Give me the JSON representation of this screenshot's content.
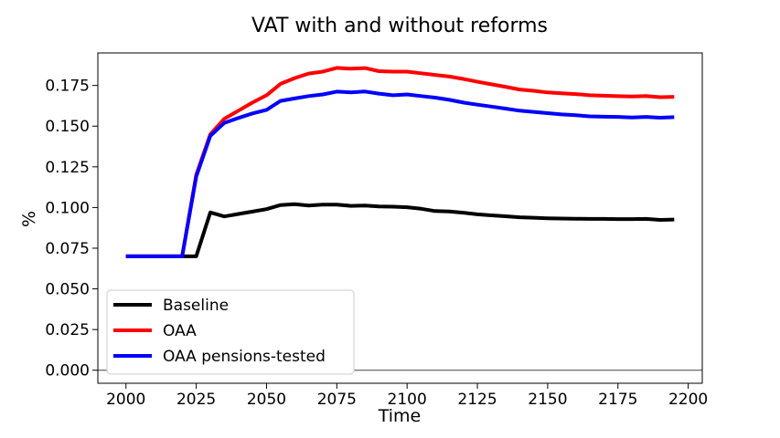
{
  "chart_data": {
    "type": "line",
    "title": "VAT with and without reforms",
    "xlabel": "Time",
    "ylabel": "%",
    "xlim": [
      1990,
      2205
    ],
    "ylim": [
      -0.008,
      0.195
    ],
    "xticks": [
      2000,
      2025,
      2050,
      2075,
      2100,
      2125,
      2150,
      2175,
      2200
    ],
    "yticks": [
      0.0,
      0.025,
      0.05,
      0.075,
      0.1,
      0.125,
      0.15,
      0.175
    ],
    "ytick_labels": [
      "0.000",
      "0.025",
      "0.050",
      "0.075",
      "0.100",
      "0.125",
      "0.150",
      "0.175"
    ],
    "legend_position": "lower-left",
    "grid": false,
    "series": [
      {
        "name": "Baseline",
        "color": "#000000",
        "x": [
          2000,
          2005,
          2010,
          2015,
          2020,
          2025,
          2030,
          2035,
          2040,
          2045,
          2050,
          2055,
          2060,
          2065,
          2070,
          2075,
          2080,
          2085,
          2090,
          2095,
          2100,
          2105,
          2110,
          2115,
          2120,
          2125,
          2130,
          2135,
          2140,
          2145,
          2150,
          2155,
          2160,
          2165,
          2170,
          2175,
          2180,
          2185,
          2190,
          2195
        ],
        "values": [
          0.07,
          0.07,
          0.07,
          0.07,
          0.07,
          0.07,
          0.097,
          0.0945,
          0.096,
          0.0975,
          0.099,
          0.1015,
          0.102,
          0.1012,
          0.1018,
          0.1018,
          0.101,
          0.1012,
          0.1007,
          0.1005,
          0.1002,
          0.0992,
          0.0978,
          0.0976,
          0.0968,
          0.0958,
          0.0952,
          0.0946,
          0.094,
          0.0937,
          0.0934,
          0.0932,
          0.0931,
          0.093,
          0.093,
          0.0929,
          0.0929,
          0.093,
          0.0924,
          0.0926
        ]
      },
      {
        "name": "OAA",
        "color": "#ff0000",
        "x": [
          2000,
          2005,
          2010,
          2015,
          2020,
          2025,
          2030,
          2035,
          2040,
          2045,
          2050,
          2055,
          2060,
          2065,
          2070,
          2075,
          2080,
          2085,
          2090,
          2095,
          2100,
          2105,
          2110,
          2115,
          2120,
          2125,
          2130,
          2135,
          2140,
          2145,
          2150,
          2155,
          2160,
          2165,
          2170,
          2175,
          2180,
          2185,
          2190,
          2195
        ],
        "values": [
          0.07,
          0.07,
          0.07,
          0.07,
          0.07,
          0.12,
          0.145,
          0.1545,
          0.1595,
          0.1645,
          0.169,
          0.176,
          0.1795,
          0.1823,
          0.1835,
          0.1858,
          0.1853,
          0.1857,
          0.1838,
          0.1835,
          0.1835,
          0.1825,
          0.1815,
          0.1805,
          0.179,
          0.1773,
          0.1757,
          0.1742,
          0.1725,
          0.1717,
          0.1707,
          0.1702,
          0.1697,
          0.169,
          0.1687,
          0.1684,
          0.1682,
          0.1685,
          0.1678,
          0.168
        ]
      },
      {
        "name": "OAA pensions-tested",
        "color": "#0000ff",
        "x": [
          2000,
          2005,
          2010,
          2015,
          2020,
          2025,
          2030,
          2035,
          2040,
          2045,
          2050,
          2055,
          2060,
          2065,
          2070,
          2075,
          2080,
          2085,
          2090,
          2095,
          2100,
          2105,
          2110,
          2115,
          2120,
          2125,
          2130,
          2135,
          2140,
          2145,
          2150,
          2155,
          2160,
          2165,
          2170,
          2175,
          2180,
          2185,
          2190,
          2195
        ],
        "values": [
          0.07,
          0.07,
          0.07,
          0.07,
          0.07,
          0.119,
          0.144,
          0.152,
          0.155,
          0.1578,
          0.16,
          0.1655,
          0.167,
          0.1685,
          0.1695,
          0.1712,
          0.1708,
          0.1713,
          0.17,
          0.169,
          0.1695,
          0.1685,
          0.1675,
          0.1662,
          0.1645,
          0.1632,
          0.162,
          0.1608,
          0.1595,
          0.1588,
          0.158,
          0.1572,
          0.1567,
          0.156,
          0.1558,
          0.1557,
          0.1553,
          0.1557,
          0.1552,
          0.1555
        ]
      }
    ]
  }
}
